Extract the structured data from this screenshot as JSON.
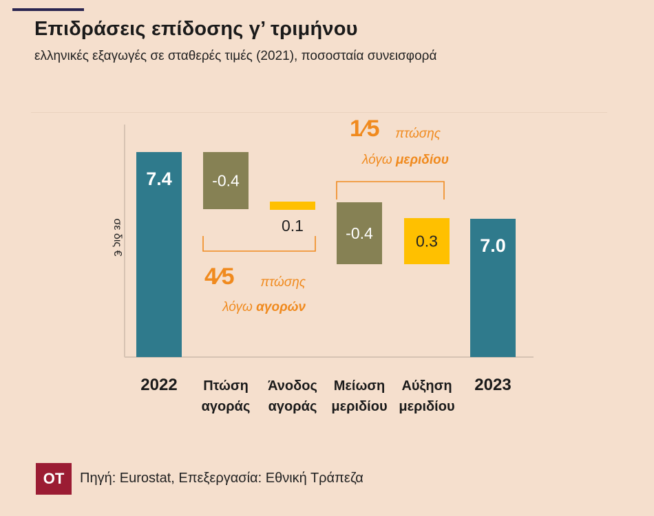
{
  "header": {
    "title": "Επιδράσεις επίδοσης γ’ τριμήνου",
    "subtitle": "ελληνικές εξαγωγές σε σταθερές τιμές (2021), ποσοσταία συνεισφορά"
  },
  "chart_data": {
    "type": "bar",
    "subtype": "waterfall",
    "ylabel": "σε δις €",
    "categories": [
      [
        "2022"
      ],
      [
        "Πτώση",
        "αγοράς"
      ],
      [
        "Άνοδος",
        "αγοράς"
      ],
      [
        "Μείωση",
        "μεριδίου"
      ],
      [
        "Αύξηση",
        "μεριδίου"
      ],
      [
        "2023"
      ]
    ],
    "bars": [
      {
        "label": "7.4",
        "kind": "total",
        "start": 0,
        "end": 7.4,
        "color": "#2f7a8c"
      },
      {
        "label": "-0.4",
        "kind": "change",
        "start": 7.4,
        "end": 7.0,
        "color": "#868154"
      },
      {
        "label": "0.1",
        "kind": "change",
        "start": 7.0,
        "end": 7.1,
        "color": "#ffc000"
      },
      {
        "label": "-0.4",
        "kind": "change",
        "start": 7.1,
        "end": 6.7,
        "color": "#868154"
      },
      {
        "label": "0.3",
        "kind": "change",
        "start": 6.7,
        "end": 7.0,
        "color": "#ffc000"
      },
      {
        "label": "7.0",
        "kind": "total",
        "start": 0,
        "end": 7.0,
        "color": "#2f7a8c"
      }
    ],
    "annotations": [
      {
        "fraction_num": "4",
        "fraction_den": "5",
        "line1": "πτώσης",
        "line2_a": "λόγω ",
        "line2_b": "αγορών",
        "spans": [
          1,
          2
        ],
        "side": "below"
      },
      {
        "fraction_num": "1",
        "fraction_den": "5",
        "line1": "πτώσης",
        "line2_a": "λόγω ",
        "line2_b": "μεριδίου",
        "spans": [
          3,
          4
        ],
        "side": "above"
      }
    ],
    "colors": {
      "total": "#2f7a8c",
      "negative": "#868154",
      "positive": "#ffc000",
      "annotation": "#f08a1e"
    },
    "grid": false
  },
  "footer": {
    "logo": "OT",
    "source": "Πηγή: Eurostat, Επεξεργασία: Εθνική Τράπεζα"
  }
}
